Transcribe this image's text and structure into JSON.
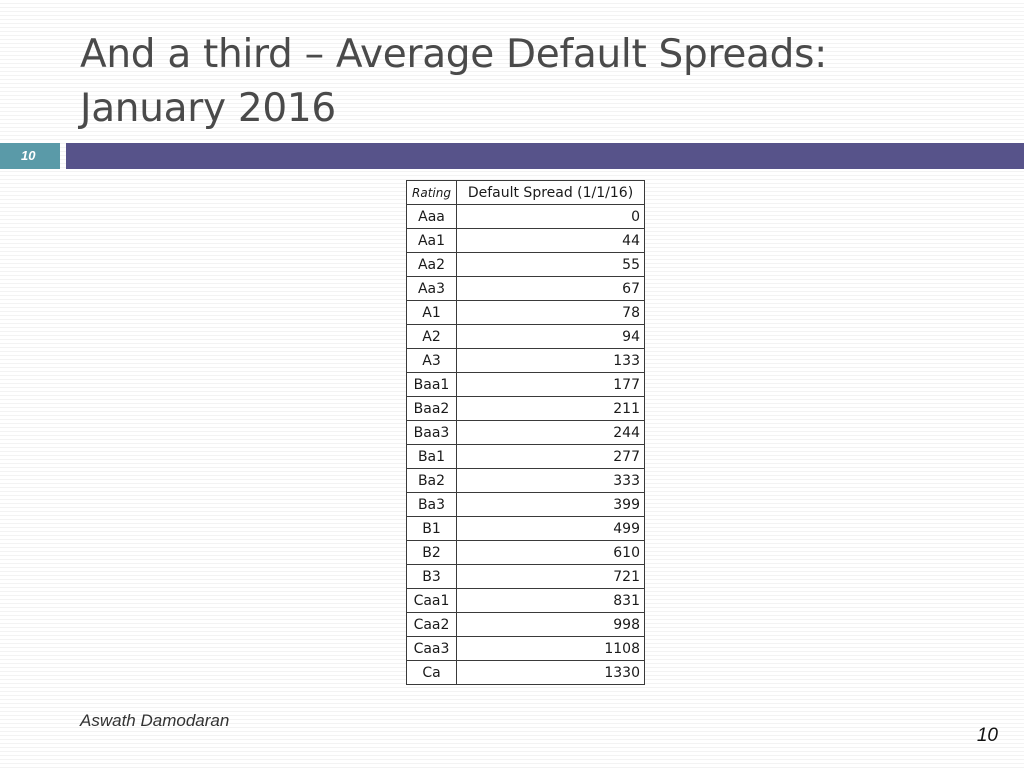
{
  "slide": {
    "title": "And a third – Average Default Spreads: January 2016",
    "slide_number": "10"
  },
  "table": {
    "headers": {
      "rating": "Rating",
      "spread": "Default Spread (1/1/16)"
    },
    "rows": [
      {
        "rating": "Aaa",
        "spread": "0"
      },
      {
        "rating": "Aa1",
        "spread": "44"
      },
      {
        "rating": "Aa2",
        "spread": "55"
      },
      {
        "rating": "Aa3",
        "spread": "67"
      },
      {
        "rating": "A1",
        "spread": "78"
      },
      {
        "rating": "A2",
        "spread": "94"
      },
      {
        "rating": "A3",
        "spread": "133"
      },
      {
        "rating": "Baa1",
        "spread": "177"
      },
      {
        "rating": "Baa2",
        "spread": "211"
      },
      {
        "rating": "Baa3",
        "spread": "244"
      },
      {
        "rating": "Ba1",
        "spread": "277"
      },
      {
        "rating": "Ba2",
        "spread": "333"
      },
      {
        "rating": "Ba3",
        "spread": "399"
      },
      {
        "rating": "B1",
        "spread": "499"
      },
      {
        "rating": "B2",
        "spread": "610"
      },
      {
        "rating": "B3",
        "spread": "721"
      },
      {
        "rating": "Caa1",
        "spread": "831"
      },
      {
        "rating": "Caa2",
        "spread": "998"
      },
      {
        "rating": "Caa3",
        "spread": "1108"
      },
      {
        "rating": "Ca",
        "spread": "1330"
      }
    ]
  },
  "footer": {
    "author": "Aswath Damodaran",
    "page_number": "10"
  },
  "colors": {
    "accent_bar": "#57538a",
    "slide_number_box": "#5a9aa8",
    "title_text": "#4a4a4a"
  }
}
